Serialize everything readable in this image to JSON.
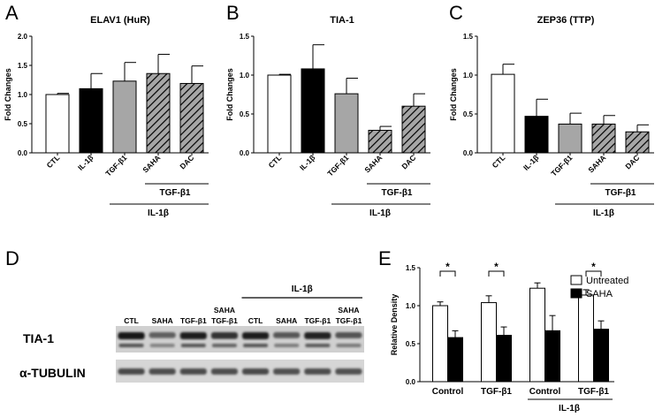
{
  "panel_letters": [
    "A",
    "B",
    "C",
    "D",
    "E"
  ],
  "colors": {
    "white": "#ffffff",
    "black": "#000000",
    "gray": "#a6a6a6",
    "hatch": "#a6a6a6",
    "axis": "#000000"
  },
  "chart_data": [
    {
      "id": "A",
      "type": "bar",
      "title": "ELAV1 (HuR)",
      "ylabel": "Fold Changes",
      "ylim": [
        0,
        2.0
      ],
      "yticks": [
        "0.0",
        "0.5",
        "1.0",
        "1.5",
        "2.0"
      ],
      "ytick_values": [
        0,
        0.5,
        1.0,
        1.5,
        2.0
      ],
      "categories": [
        "CTL",
        "IL-1β",
        "TGF-β1",
        "SAHA",
        "DAC"
      ],
      "values": [
        1.0,
        1.1,
        1.23,
        1.36,
        1.19
      ],
      "errors": [
        0.02,
        0.26,
        0.32,
        0.33,
        0.3
      ],
      "fills": [
        "white",
        "black",
        "gray",
        "hatch",
        "hatch"
      ],
      "group1_label": "TGF-β1",
      "group2_label": "IL-1β"
    },
    {
      "id": "B",
      "type": "bar",
      "title": "TIA-1",
      "ylabel": "Fold Changes",
      "ylim": [
        0,
        1.5
      ],
      "yticks": [
        "0.0",
        "0.5",
        "1.0",
        "1.5"
      ],
      "ytick_values": [
        0,
        0.5,
        1.0,
        1.5
      ],
      "categories": [
        "CTL",
        "IL-1β",
        "TGF-β1",
        "SAHA",
        "DAC"
      ],
      "values": [
        1.0,
        1.08,
        0.76,
        0.29,
        0.6
      ],
      "errors": [
        0.01,
        0.31,
        0.2,
        0.05,
        0.16
      ],
      "fills": [
        "white",
        "black",
        "gray",
        "hatch",
        "hatch"
      ],
      "group1_label": "TGF-β1",
      "group2_label": "IL-1β"
    },
    {
      "id": "C",
      "type": "bar",
      "title": "ZEP36 (TTP)",
      "ylabel": "Fold Changes",
      "ylim": [
        0,
        1.5
      ],
      "yticks": [
        "0.0",
        "0.5",
        "1.0",
        "1.5"
      ],
      "ytick_values": [
        0,
        0.5,
        1.0,
        1.5
      ],
      "categories": [
        "CTL",
        "IL-1β",
        "TGF-β1",
        "SAHA",
        "DAC"
      ],
      "values": [
        1.01,
        0.47,
        0.37,
        0.37,
        0.27
      ],
      "errors": [
        0.13,
        0.22,
        0.14,
        0.11,
        0.09
      ],
      "fills": [
        "white",
        "black",
        "gray",
        "hatch",
        "hatch"
      ],
      "group1_label": "TGF-β1",
      "group2_label": "IL-1β"
    },
    {
      "id": "E",
      "type": "bar",
      "ylabel": "Relative Density",
      "ylim": [
        0,
        1.5
      ],
      "yticks": [
        "0.0",
        "0.5",
        "1.0",
        "1.5"
      ],
      "ytick_values": [
        0,
        0.5,
        1.0,
        1.5
      ],
      "categories": [
        "Control",
        "TGF-β1",
        "Control",
        "TGF-β1"
      ],
      "series": [
        {
          "name": "Untreated",
          "fill": "white",
          "values": [
            1.0,
            1.04,
            1.23,
            1.14
          ],
          "errors": [
            0.05,
            0.09,
            0.07,
            0.07
          ]
        },
        {
          "name": "SAHA",
          "fill": "black",
          "values": [
            0.58,
            0.61,
            0.67,
            0.69
          ],
          "errors": [
            0.09,
            0.11,
            0.2,
            0.11
          ]
        }
      ],
      "significance": [
        {
          "group": 0,
          "label": "*"
        },
        {
          "group": 1,
          "label": "*"
        },
        {
          "group": 3,
          "label": "*"
        }
      ],
      "legend_position": "top-right",
      "group_label": "IL-1β"
    }
  ],
  "blot": {
    "header_label": "IL-1β",
    "lanes": [
      {
        "top": "",
        "bottom": "CTL"
      },
      {
        "top": "",
        "bottom": "SAHA"
      },
      {
        "top": "",
        "bottom": "TGF-β1"
      },
      {
        "top": "SAHA",
        "bottom": "TGF-β1"
      },
      {
        "top": "",
        "bottom": "CTL"
      },
      {
        "top": "",
        "bottom": "SAHA"
      },
      {
        "top": "",
        "bottom": "TGF-β1"
      },
      {
        "top": "SAHA",
        "bottom": "TGF-β1"
      }
    ],
    "row_labels": [
      "TIA-1",
      "α-TUBULIN"
    ],
    "tia1_intensity": [
      0.92,
      0.55,
      0.9,
      0.8,
      0.9,
      0.6,
      0.88,
      0.62
    ],
    "tubulin_intensity": [
      0.75,
      0.72,
      0.73,
      0.72,
      0.74,
      0.7,
      0.72,
      0.7
    ]
  }
}
